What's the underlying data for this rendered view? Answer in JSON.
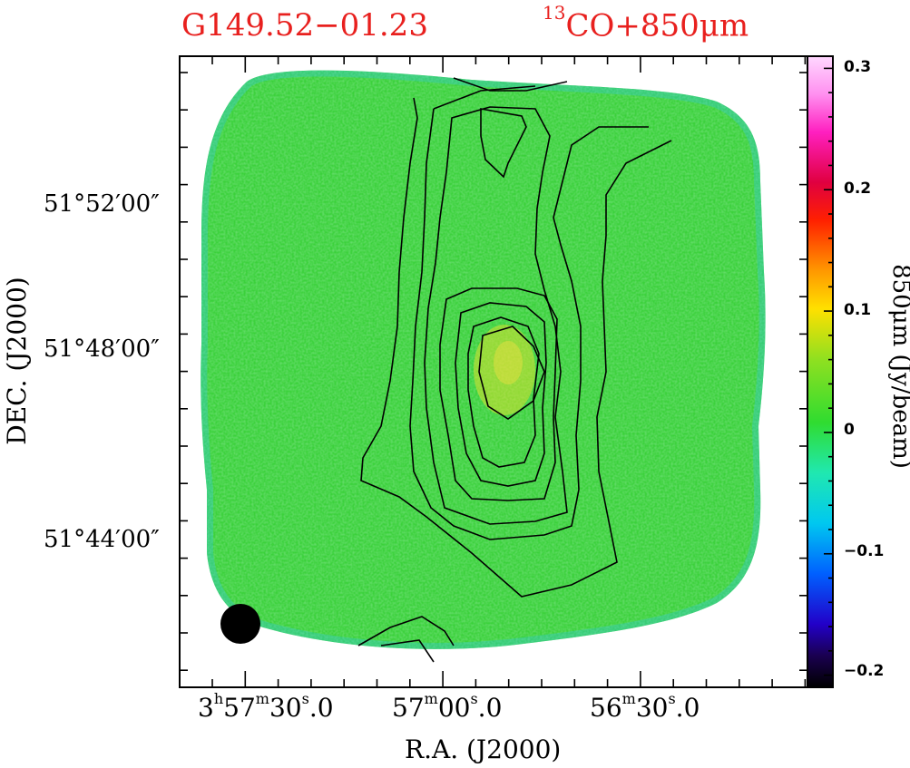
{
  "chart_data": {
    "type": "heatmap",
    "title_left": "G149.52−01.23",
    "title_right_sup": "13",
    "title_right_text": "CO+850μm",
    "xlabel": "R.A.  (J2000)",
    "ylabel": "DEC.  (J2000)",
    "colorbar_label": "850μm  (Jy/beam)",
    "colorbar_range": [
      -0.21,
      0.31
    ],
    "colorbar_ticks": [
      "0.3",
      "0.2",
      "0.1",
      "0",
      "−0.1",
      "−0.2"
    ],
    "x_ticks": [
      {
        "h": "3",
        "hs": "h",
        "m": "57",
        "ms": "m",
        "s": "30",
        "ss": "s",
        "frac": ".0"
      },
      {
        "h": "",
        "hs": "",
        "m": "57",
        "ms": "m",
        "s": "00",
        "ss": "s",
        "frac": ".0"
      },
      {
        "h": "",
        "hs": "",
        "m": "56",
        "ms": "m",
        "s": "30",
        "ss": "s",
        "frac": ".0"
      }
    ],
    "y_ticks": [
      "51°52′00″",
      "51°48′00″",
      "51°44′00″"
    ],
    "contour_levels": 7,
    "beam": "filled circle, lower-left"
  },
  "colors": {
    "title": "#e8201e",
    "map_base": "#3bd13b",
    "contour": "#000000",
    "beam": "#000000"
  }
}
